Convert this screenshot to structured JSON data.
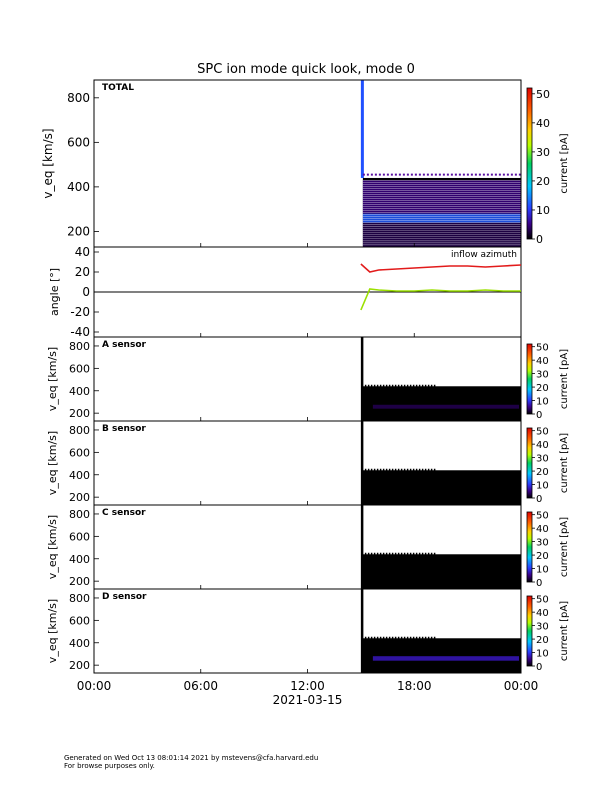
{
  "title": "SPC ion mode quick look, mode 0",
  "footer": {
    "line1": "Generated on Wed Oct 13 08:01:14 2021 by mstevens@cfa.harvard.edu",
    "line2": "For browse purposes only."
  },
  "colors": {
    "plot_bg": "#ffffff",
    "sensor_bg": "#000000",
    "inflow_label": "#ff2020"
  },
  "chart_data": [
    {
      "type": "heatmap",
      "panel": "TOTAL",
      "label": "TOTAL",
      "ylabel": "v_eq [km/s]",
      "ylim": [
        130,
        880
      ],
      "yticks": [
        200,
        400,
        600,
        800
      ],
      "data_start": "15:00",
      "colorbar": {
        "label": "current [pA]",
        "range": [
          0,
          52
        ],
        "ticks": [
          0,
          10,
          20,
          30,
          40,
          50
        ]
      },
      "bands": [
        {
          "from": 130,
          "to": 240,
          "value": 3
        },
        {
          "from": 240,
          "to": 280,
          "value": 12
        },
        {
          "from": 280,
          "to": 430,
          "value": 5
        }
      ]
    },
    {
      "type": "line",
      "panel": "angle",
      "ylabel": "angle [°]",
      "ylim": [
        -45,
        45
      ],
      "yticks": [
        -40,
        -20,
        0,
        20,
        40
      ],
      "annotations": [
        "inflow azimuth"
      ],
      "series": [
        {
          "color": "#e21b1b",
          "x": [
            "15:00",
            "15:30",
            "16:00",
            "17:00",
            "18:00",
            "19:00",
            "20:00",
            "21:00",
            "22:00",
            "23:00",
            "24:00"
          ],
          "y": [
            28,
            20,
            22,
            23,
            24,
            25,
            26,
            26,
            25,
            26,
            27
          ]
        },
        {
          "color": "#9be000",
          "x": [
            "15:00",
            "15:30",
            "16:00",
            "17:00",
            "18:00",
            "19:00",
            "20:00",
            "21:00",
            "22:00",
            "23:00",
            "24:00"
          ],
          "y": [
            -18,
            3,
            2,
            1,
            1,
            2,
            1,
            1,
            2,
            1,
            1
          ]
        }
      ]
    },
    {
      "type": "heatmap",
      "panel": "A",
      "label": "A sensor",
      "ylabel": "v_eq [km/s]",
      "ylim": [
        130,
        880
      ],
      "yticks": [
        200,
        400,
        600,
        800
      ],
      "data_start": "15:00",
      "colorbar": {
        "label": "current [pA]",
        "range": [
          0,
          52
        ],
        "ticks": [
          0,
          10,
          20,
          30,
          40,
          50
        ]
      },
      "bands": [
        {
          "from": 240,
          "to": 275,
          "value": 3
        }
      ]
    },
    {
      "type": "heatmap",
      "panel": "B",
      "label": "B sensor",
      "ylabel": "v_eq [km/s]",
      "ylim": [
        130,
        880
      ],
      "yticks": [
        200,
        400,
        600,
        800
      ],
      "data_start": "15:00",
      "colorbar": {
        "label": "current [pA]",
        "range": [
          0,
          52
        ],
        "ticks": [
          0,
          10,
          20,
          30,
          40,
          50
        ]
      },
      "bands": []
    },
    {
      "type": "heatmap",
      "panel": "C",
      "label": "C sensor",
      "ylabel": "v_eq [km/s]",
      "ylim": [
        130,
        880
      ],
      "yticks": [
        200,
        400,
        600,
        800
      ],
      "data_start": "15:00",
      "colorbar": {
        "label": "current [pA]",
        "range": [
          0,
          52
        ],
        "ticks": [
          0,
          10,
          20,
          30,
          40,
          50
        ]
      },
      "bands": []
    },
    {
      "type": "heatmap",
      "panel": "D",
      "label": "D sensor",
      "ylabel": "v_eq [km/s]",
      "ylim": [
        130,
        880
      ],
      "yticks": [
        200,
        400,
        600,
        800
      ],
      "data_start": "15:00",
      "colorbar": {
        "label": "current [pA]",
        "range": [
          0,
          52
        ],
        "ticks": [
          0,
          10,
          20,
          30,
          40,
          50
        ]
      },
      "bands": [
        {
          "from": 240,
          "to": 280,
          "value": 7
        }
      ]
    }
  ],
  "xaxis": {
    "ticks": [
      "00:00",
      "06:00",
      "12:00",
      "18:00",
      "00:00"
    ],
    "tick_hours": [
      0,
      6,
      12,
      18,
      24
    ],
    "date": "2021-03-15"
  }
}
